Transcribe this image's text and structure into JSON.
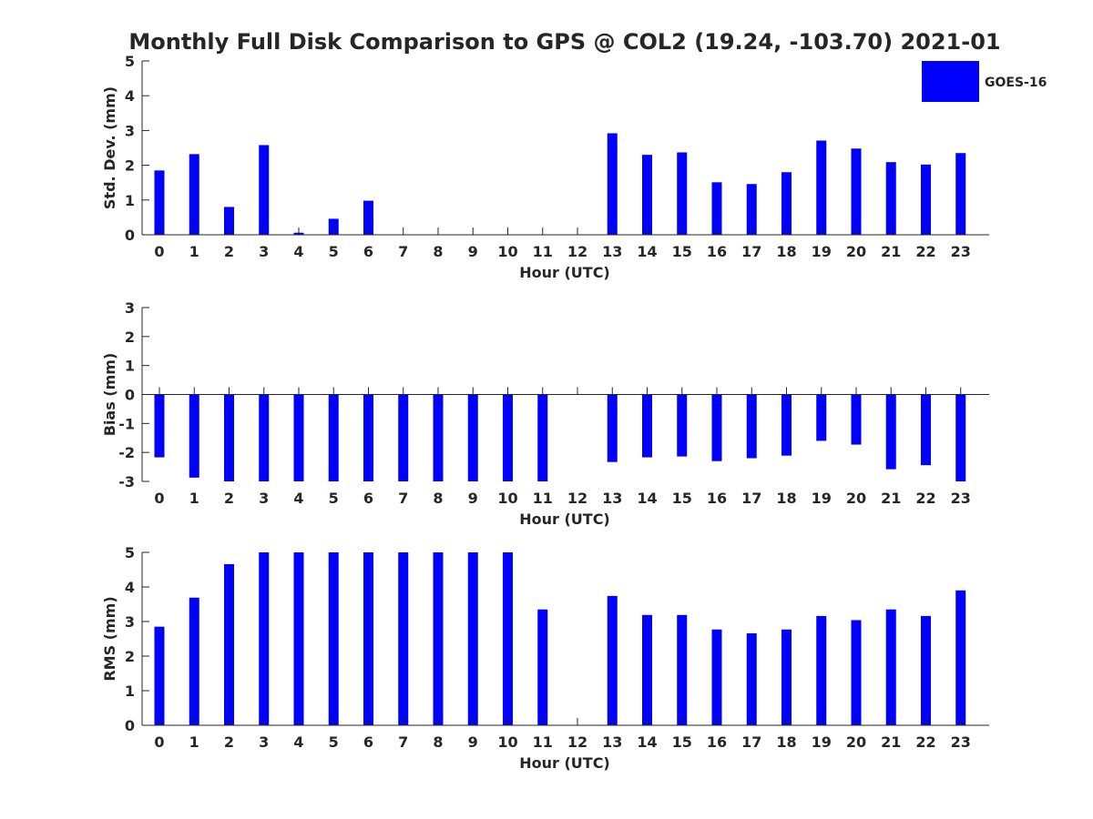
{
  "title": "Monthly Full Disk Comparison to GPS @ COL2 (19.24, -103.70) 2021-01",
  "legend": {
    "label": "GOES-16",
    "color": "#0000ff",
    "placement": "top-right"
  },
  "colors": {
    "bar": "#0000ff",
    "axis": "#262626",
    "background": "#ffffff"
  },
  "chart_data": [
    {
      "type": "bar",
      "xlabel": "Hour (UTC)",
      "ylabel": "Std. Dev. (mm)",
      "ylim": [
        0,
        5
      ],
      "yticks": [
        0,
        1,
        2,
        3,
        4,
        5
      ],
      "categories": [
        "0",
        "1",
        "2",
        "3",
        "4",
        "5",
        "6",
        "7",
        "8",
        "9",
        "10",
        "11",
        "12",
        "13",
        "14",
        "15",
        "16",
        "17",
        "18",
        "19",
        "20",
        "21",
        "22",
        "23"
      ],
      "values": [
        1.85,
        2.32,
        0.8,
        2.58,
        0.06,
        0.46,
        0.98,
        null,
        null,
        null,
        null,
        null,
        null,
        2.92,
        2.3,
        2.37,
        1.51,
        1.46,
        1.8,
        2.71,
        2.48,
        2.09,
        2.02,
        2.35
      ],
      "grid": false,
      "legend": "top-right"
    },
    {
      "type": "bar",
      "xlabel": "Hour (UTC)",
      "ylabel": "Bias (mm)",
      "ylim": [
        -3,
        3
      ],
      "yticks": [
        -3,
        -2,
        -1,
        0,
        1,
        2,
        3
      ],
      "categories": [
        "0",
        "1",
        "2",
        "3",
        "4",
        "5",
        "6",
        "7",
        "8",
        "9",
        "10",
        "11",
        "12",
        "13",
        "14",
        "15",
        "16",
        "17",
        "18",
        "19",
        "20",
        "21",
        "22",
        "23"
      ],
      "values": [
        -2.17,
        -2.87,
        -3.0,
        -3.0,
        -3.0,
        -3.0,
        -3.0,
        -3.0,
        -3.0,
        -3.0,
        -3.0,
        -3.0,
        null,
        -2.33,
        -2.17,
        -2.14,
        -2.3,
        -2.2,
        -2.11,
        -1.6,
        -1.73,
        -2.58,
        -2.44,
        -3.0
      ],
      "grid": false
    },
    {
      "type": "bar",
      "xlabel": "Hour (UTC)",
      "ylabel": "RMS (mm)",
      "ylim": [
        0,
        5
      ],
      "yticks": [
        0,
        1,
        2,
        3,
        4,
        5
      ],
      "categories": [
        "0",
        "1",
        "2",
        "3",
        "4",
        "5",
        "6",
        "7",
        "8",
        "9",
        "10",
        "11",
        "12",
        "13",
        "14",
        "15",
        "16",
        "17",
        "18",
        "19",
        "20",
        "21",
        "22",
        "23"
      ],
      "values": [
        2.85,
        3.69,
        4.66,
        5.0,
        5.0,
        5.0,
        5.0,
        5.0,
        5.0,
        5.0,
        5.0,
        3.35,
        null,
        3.74,
        3.19,
        3.19,
        2.77,
        2.66,
        2.77,
        3.16,
        3.04,
        3.35,
        3.16,
        3.9
      ],
      "grid": false
    }
  ]
}
